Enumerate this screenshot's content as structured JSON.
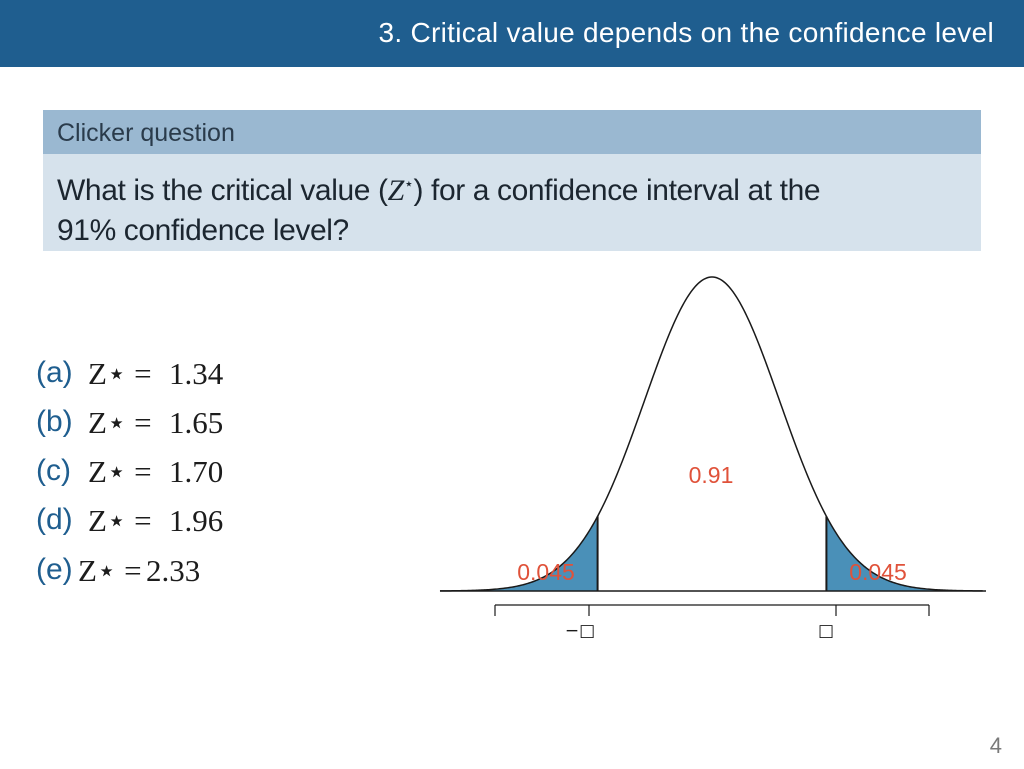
{
  "header": {
    "title": "3. Critical value depends on the confidence level"
  },
  "question": {
    "heading": "Clicker question",
    "text_before": "What is the critical value (",
    "z_symbol": "Z",
    "star": "⋆",
    "text_after": ") for a confidence interval at the",
    "line2": "91% confidence level?"
  },
  "options": [
    {
      "letter": "(a)",
      "z": "Z⋆ =",
      "value": "1.34"
    },
    {
      "letter": "(b)",
      "z": "Z⋆ =",
      "value": "1.65"
    },
    {
      "letter": "(c)",
      "z": "Z⋆ =",
      "value": "1.70"
    },
    {
      "letter": "(d)",
      "z": "Z⋆ =",
      "value": "1.96"
    },
    {
      "letter": "(e)",
      "z": "Z⋆ =",
      "value": "2.33"
    }
  ],
  "chart_data": {
    "type": "area",
    "curve": "standard normal density",
    "center_area": "0.91",
    "left_tail": "0.045",
    "right_tail": "0.045",
    "tick_labels": [
      "−□",
      "□"
    ],
    "tail_color": "#4a90b8",
    "label_color": "#e0523a"
  },
  "page": {
    "number": "4"
  }
}
